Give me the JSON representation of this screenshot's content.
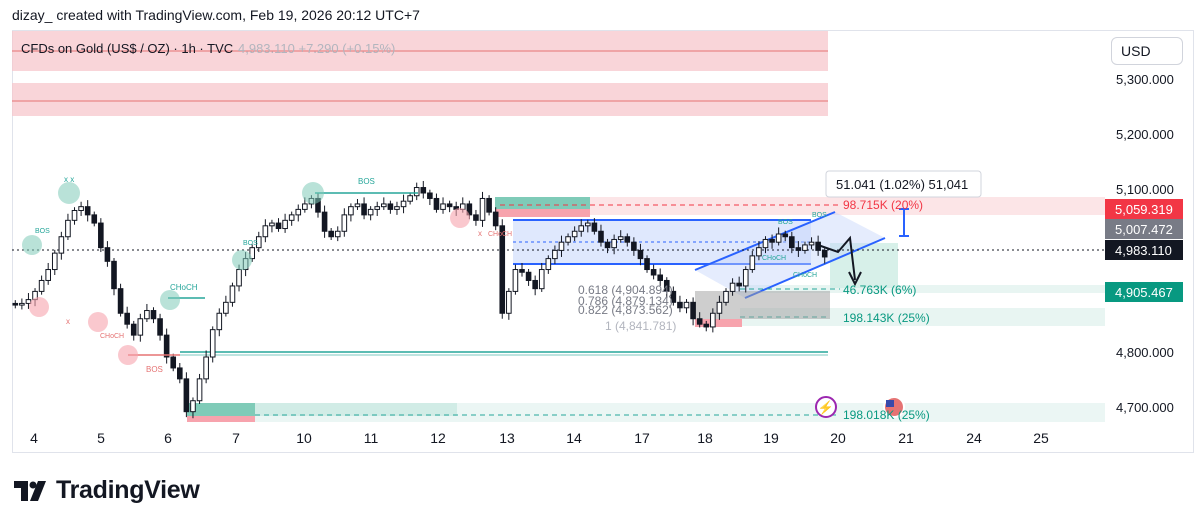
{
  "header": {
    "attribution": "dizay_ created with TradingView.com, Feb 19, 2026 20:12 UTC+7"
  },
  "legend": {
    "symbol": "CFDs on Gold (US$ / OZ) · 1h · TVC",
    "quote": "4,983.110  +7.290 (+0.15%)"
  },
  "currency": "USD",
  "footer": {
    "brand": "TradingView"
  },
  "colors": {
    "up": "#131722",
    "down": "#131722",
    "supply": "#f7c7cc",
    "demand": "#7fcbb8",
    "channel": "#2962ff",
    "last_price_bg": "#131722",
    "red_label": "#f23645",
    "green_label": "#089981",
    "grey_label": "#787b86"
  },
  "chart_data": {
    "type": "candlestick",
    "title": "CFDs on Gold (US$ / OZ) · 1h · TVC",
    "ylim": [
      4660,
      5380
    ],
    "y_ticks": [
      {
        "value": 5300,
        "label": "5,300.000"
      },
      {
        "value": 5200,
        "label": "5,200.000"
      },
      {
        "value": 5100,
        "label": "5,100.000"
      },
      {
        "value": 4800,
        "label": "4,800.000"
      },
      {
        "value": 4700,
        "label": "4,700.000"
      }
    ],
    "x_ticks": [
      "4",
      "5",
      "6",
      "7",
      "10",
      "11",
      "12",
      "13",
      "14",
      "17",
      "18",
      "19",
      "20",
      "21",
      "24",
      "25"
    ],
    "price_series": [
      4895,
      4898,
      4905,
      4920,
      4940,
      4960,
      4990,
      5020,
      5050,
      5068,
      5075,
      5060,
      5045,
      5000,
      4975,
      4925,
      4880,
      4860,
      4840,
      4870,
      4885,
      4870,
      4840,
      4800,
      4780,
      4760,
      4700,
      4720,
      4760,
      4800,
      4850,
      4880,
      4900,
      4930,
      4960,
      4980,
      5000,
      5020,
      5040,
      5045,
      5035,
      5050,
      5060,
      5070,
      5080,
      5090,
      5065,
      5030,
      5020,
      5030,
      5060,
      5075,
      5080,
      5060,
      5070,
      5075,
      5080,
      5070,
      5075,
      5085,
      5095,
      5110,
      5100,
      5090,
      5070,
      5080,
      5075,
      5070,
      5080,
      5060,
      5050,
      5090,
      5065,
      5040,
      4880,
      4920,
      4960,
      4955,
      4940,
      4925,
      4960,
      4980,
      4995,
      5010,
      5020,
      5030,
      5040,
      5045,
      5030,
      5010,
      5000,
      5015,
      5020,
      5010,
      4995,
      4980,
      4960,
      4950,
      4940,
      4920,
      4900,
      4890,
      4900,
      4870,
      4860,
      4855,
      4880,
      4900,
      4920,
      4935,
      4930,
      4960,
      4985,
      5000,
      5015,
      5010,
      5025,
      5020,
      5000,
      4995,
      5005,
      5010,
      4995,
      4983
    ],
    "levels": [
      {
        "label": "BOS",
        "price": 5088
      },
      {
        "label": "CHoCH",
        "price": 4880
      },
      {
        "label": "BOS",
        "price": 4800
      }
    ],
    "annotations": {
      "measure": "51.041 (1.02%) 51,041",
      "target_up": "98.715K (20%)",
      "target_mid": "46.763K (6%)",
      "target_low": "198.143K (25%)",
      "target_bottom": "198.018K (25%)",
      "fib_1": "0.618 (4,904.894)",
      "fib_2": "0.786 (4,879.134)",
      "fib_3": "0.822 (4,873.562)",
      "fib_4": "1 (4,841.781)"
    },
    "price_labels": [
      {
        "value": "5,059.319",
        "kind": "red"
      },
      {
        "value": "5,007.472",
        "kind": "grey"
      },
      {
        "value": "4,983.110",
        "kind": "last"
      },
      {
        "value": "4,905.467",
        "kind": "green"
      }
    ],
    "structure_labels": [
      "BOS",
      "BOS",
      "CHoCH",
      "CHoCH",
      "BOS",
      "BOS",
      "CHoCH",
      "BOS",
      "BOS",
      "CHoCH",
      "x x"
    ]
  }
}
